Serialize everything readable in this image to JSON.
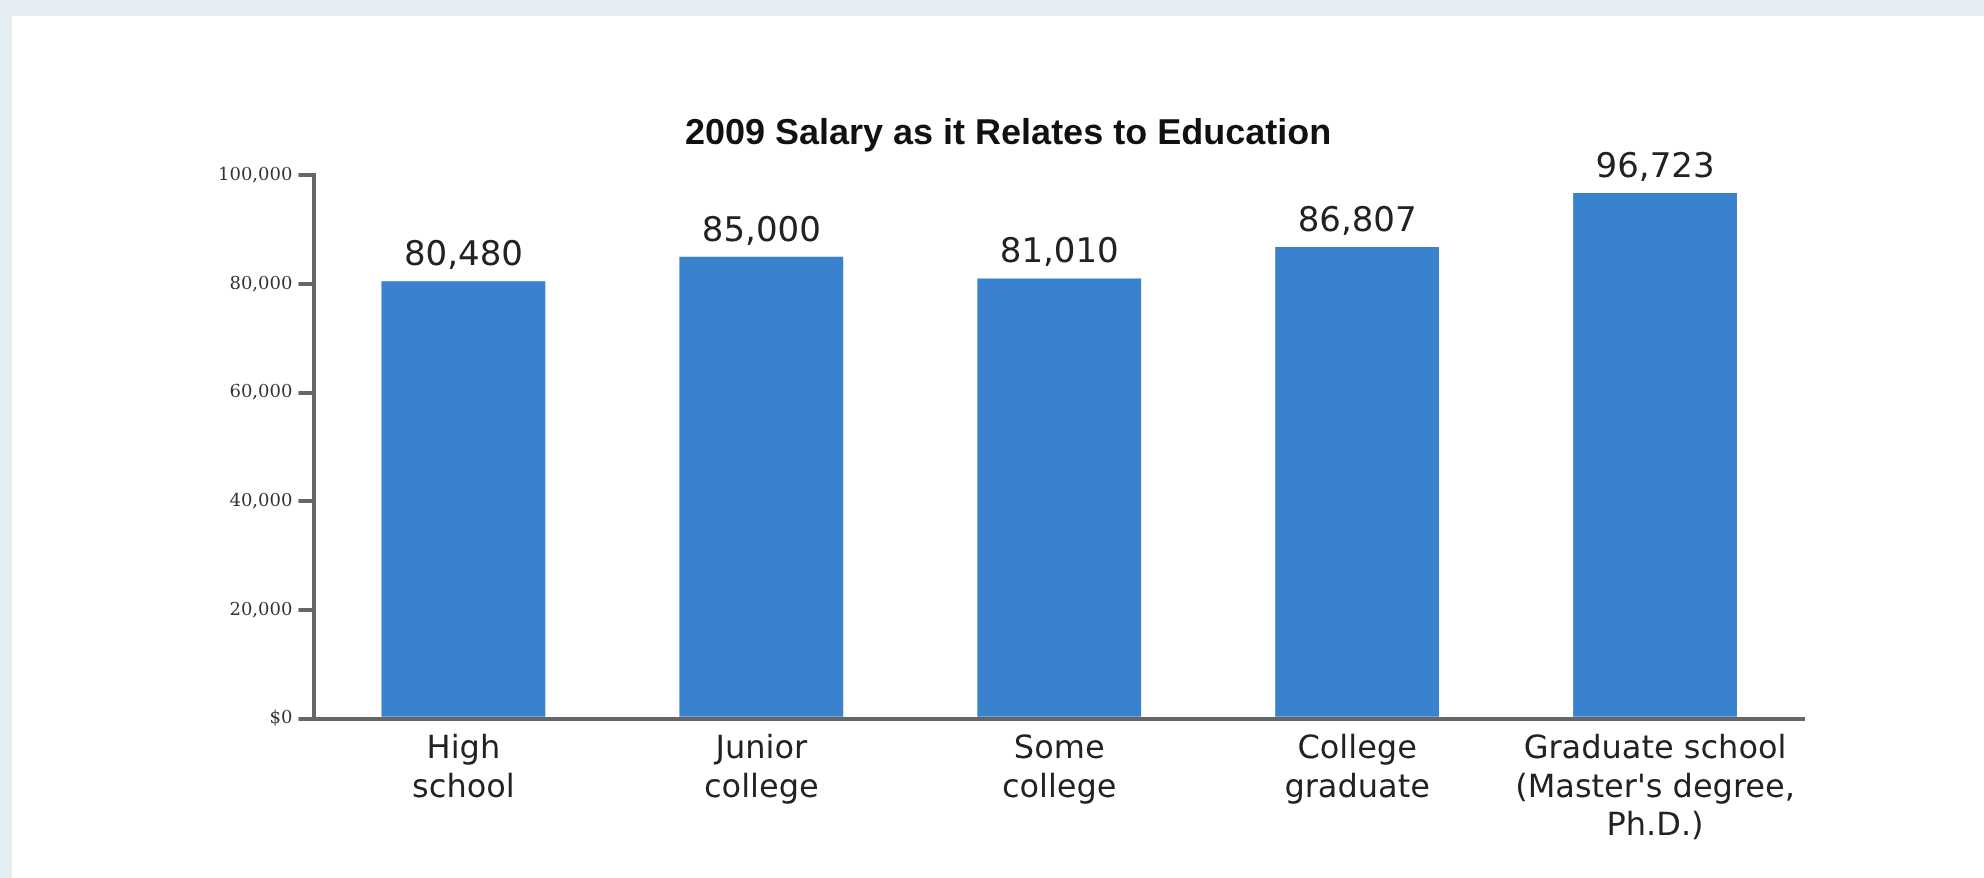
{
  "chart_data": {
    "type": "bar",
    "title": "2009 Salary as it Relates to Education",
    "categories": [
      "High\nschool",
      "Junior\ncollege",
      "Some\ncollege",
      "College\ngraduate",
      "Graduate school\n(Master's degree,\nPh.D.)"
    ],
    "values": [
      80480,
      85000,
      81010,
      86807,
      96723
    ],
    "value_labels": [
      "80,480",
      "85,000",
      "81,010",
      "86,807",
      "96,723"
    ],
    "color": "#3a82cd",
    "ylim": [
      0,
      100000
    ],
    "yticks": [
      {
        "value": 0,
        "label": "$0"
      },
      {
        "value": 20000,
        "label": "20,000"
      },
      {
        "value": 40000,
        "label": "40,000"
      },
      {
        "value": 60000,
        "label": "60,000"
      },
      {
        "value": 80000,
        "label": "80,000"
      },
      {
        "value": 100000,
        "label": "100,000"
      }
    ],
    "grid": false,
    "legend": false
  }
}
